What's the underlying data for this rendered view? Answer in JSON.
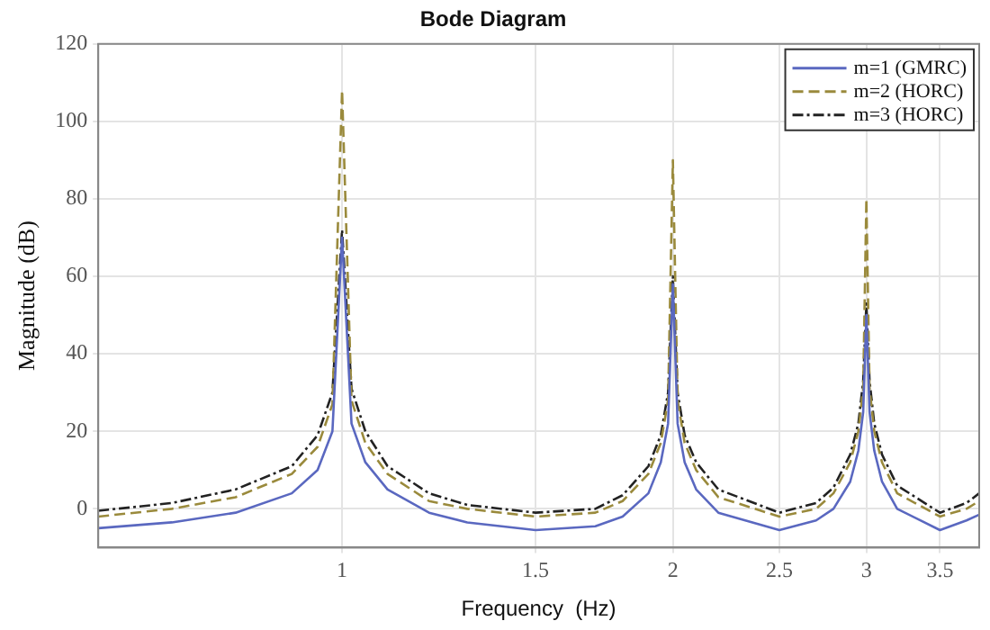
{
  "chart_data": {
    "type": "line",
    "title": "Bode Diagram",
    "xlabel": "Frequency  (Hz)",
    "ylabel": "Magnitude (dB)",
    "x": [
      0.6,
      0.7,
      0.8,
      0.9,
      0.95,
      0.98,
      1.0,
      1.02,
      1.05,
      1.1,
      1.2,
      1.3,
      1.5,
      1.7,
      1.8,
      1.9,
      1.95,
      1.98,
      2.0,
      2.02,
      2.05,
      2.1,
      2.2,
      2.5,
      2.7,
      2.8,
      2.9,
      2.95,
      2.98,
      3.0,
      3.02,
      3.05,
      3.1,
      3.2,
      3.5,
      3.7,
      3.8
    ],
    "series": [
      {
        "name": "m=1 (GMRC)",
        "color": "#5a68c0",
        "line_style": "solid",
        "values": [
          -5,
          -3.5,
          -1,
          4,
          10,
          20,
          70,
          22,
          12,
          5,
          -1,
          -3.5,
          -5.5,
          -4.5,
          -2,
          4,
          12,
          22,
          58,
          22,
          12,
          5,
          -1,
          -5.5,
          -3,
          0,
          7,
          15,
          25,
          50,
          25,
          15,
          7,
          0,
          -5.5,
          -3,
          -1.5
        ]
      },
      {
        "name": "m=2 (HORC)",
        "color": "#9a8a3c",
        "line_style": "dashed",
        "values": [
          -2,
          0,
          3,
          9,
          16,
          27,
          108,
          28,
          17,
          9,
          2,
          0,
          -2,
          -1,
          2,
          9,
          17,
          28,
          90,
          28,
          17,
          10,
          3,
          -2,
          0,
          4,
          12,
          20,
          31,
          80,
          31,
          20,
          12,
          4,
          -2,
          0,
          2
        ]
      },
      {
        "name": "m=3 (HORC)",
        "color": "#222222",
        "line_style": "dashdot",
        "values": [
          -0.5,
          1.5,
          5,
          11,
          19,
          30,
          72,
          31,
          20,
          11,
          4,
          1,
          -1,
          0,
          3.5,
          11,
          19,
          30,
          60,
          30,
          19,
          12,
          5,
          -1,
          1.5,
          5.5,
          14,
          22,
          33,
          53,
          33,
          22,
          14,
          6,
          -1,
          1.5,
          4
        ]
      }
    ],
    "log": "x",
    "xlim": [
      0.6,
      3.8
    ],
    "xticks": [
      1,
      1.5,
      2,
      2.5,
      3,
      3.5
    ],
    "ylim": [
      -10,
      120
    ],
    "yticks": [
      0,
      20,
      40,
      60,
      80,
      100,
      120
    ],
    "grid": true,
    "legend": "top right",
    "marker": "none"
  }
}
